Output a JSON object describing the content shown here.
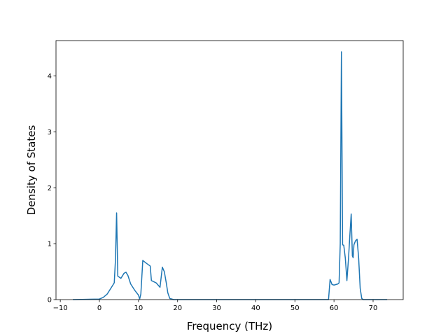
{
  "chart_data": {
    "type": "line",
    "title": "",
    "xlabel": "Frequency (THz)",
    "ylabel": "Density of States",
    "xlim": [
      -11.1,
      77.7
    ],
    "ylim": [
      0,
      4.63
    ],
    "grid": false,
    "legend": "none",
    "xticks": [
      -10,
      0,
      10,
      20,
      30,
      40,
      50,
      60,
      70
    ],
    "xtick_labels": [
      "−10",
      "0",
      "10",
      "20",
      "30",
      "40",
      "50",
      "60",
      "70"
    ],
    "yticks": [
      0,
      1,
      2,
      3,
      4
    ],
    "ytick_labels": [
      "0",
      "1",
      "2",
      "3",
      "4"
    ],
    "series": [
      {
        "color": "#1f77b4",
        "x": [
          -6.8,
          0,
          1,
          2,
          3,
          3.8,
          4.1,
          4.4,
          4.7,
          5.5,
          6.3,
          6.8,
          7.3,
          8,
          9,
          10,
          10.3,
          10.6,
          11.1,
          12,
          13,
          13.3,
          14.5,
          15.5,
          16.1,
          16.6,
          17.1,
          17.5,
          18,
          19,
          58.6,
          59,
          59.5,
          60,
          61,
          61.3,
          61.6,
          61.9,
          62.2,
          62.5,
          62.9,
          63.3,
          63.7,
          64.1,
          64.4,
          64.7,
          64.9,
          65.1,
          65.5,
          65.9,
          66.3,
          66.7,
          67.1,
          67.5,
          68,
          73.6
        ],
        "y": [
          0,
          0.01,
          0.04,
          0.1,
          0.21,
          0.3,
          0.7,
          1.55,
          0.42,
          0.38,
          0.47,
          0.49,
          0.43,
          0.28,
          0.17,
          0.08,
          0.01,
          0.1,
          0.7,
          0.65,
          0.6,
          0.34,
          0.3,
          0.22,
          0.58,
          0.5,
          0.3,
          0.12,
          0.02,
          0,
          0,
          0.36,
          0.27,
          0.26,
          0.28,
          0.3,
          1.0,
          4.43,
          0.98,
          0.97,
          0.74,
          0.34,
          0.72,
          1.2,
          1.53,
          0.78,
          0.75,
          0.98,
          1.05,
          1.08,
          0.75,
          0.2,
          0.02,
          0,
          0,
          0
        ]
      }
    ]
  }
}
